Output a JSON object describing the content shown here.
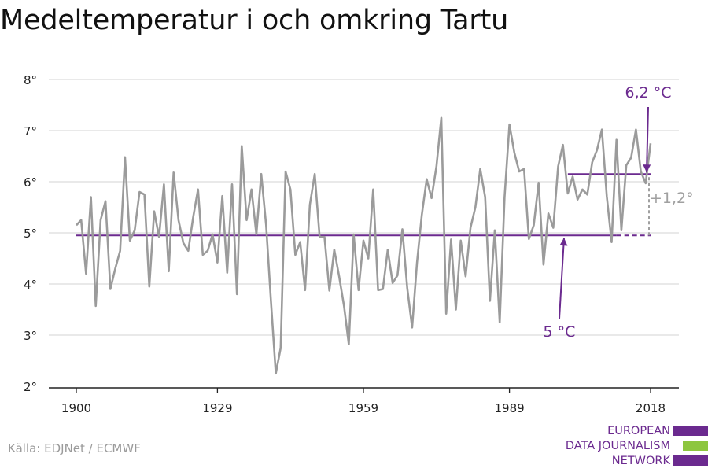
{
  "title": "Medeltemperatur i och omkring Tartu",
  "source": "Källa: EDJNet / ECMWF",
  "logo": {
    "lines": [
      "EUROPEAN",
      "DATA JOURNALISM",
      "NETWORK"
    ],
    "text_color": "#6b2a8f",
    "bar_colors": [
      "#6b2a8f",
      "#8dc63f",
      "#6b2a8f"
    ]
  },
  "colors": {
    "series": "#9b9b9b",
    "accent": "#6b2a8f",
    "grid": "#dcdcdc",
    "axis": "#222222",
    "delta": "#a0a0a0"
  },
  "chart_data": {
    "type": "line",
    "title": "Medeltemperatur i och omkring Tartu",
    "xlabel": "",
    "ylabel": "",
    "xlim": [
      1900,
      2018
    ],
    "ylim": [
      2,
      8
    ],
    "x_ticks": [
      1900,
      1929,
      1959,
      1989,
      2018
    ],
    "y_ticks": [
      2,
      3,
      4,
      5,
      6,
      7,
      8
    ],
    "y_tick_labels": [
      "2°",
      "3°",
      "4°",
      "5°",
      "6°",
      "7°",
      "8°"
    ],
    "grid": true,
    "series": [
      {
        "values": [
          [
            1900,
            5.15
          ],
          [
            1901,
            5.25
          ],
          [
            1902,
            4.2
          ],
          [
            1903,
            5.7
          ],
          [
            1904,
            3.57
          ],
          [
            1905,
            5.25
          ],
          [
            1906,
            5.62
          ],
          [
            1907,
            3.9
          ],
          [
            1908,
            4.3
          ],
          [
            1909,
            4.65
          ],
          [
            1910,
            6.48
          ],
          [
            1911,
            4.85
          ],
          [
            1912,
            5.05
          ],
          [
            1913,
            5.8
          ],
          [
            1914,
            5.75
          ],
          [
            1915,
            3.95
          ],
          [
            1916,
            5.42
          ],
          [
            1917,
            4.92
          ],
          [
            1918,
            5.95
          ],
          [
            1919,
            4.25
          ],
          [
            1920,
            6.18
          ],
          [
            1921,
            5.25
          ],
          [
            1922,
            4.8
          ],
          [
            1923,
            4.65
          ],
          [
            1924,
            5.3
          ],
          [
            1925,
            5.85
          ],
          [
            1926,
            4.57
          ],
          [
            1927,
            4.65
          ],
          [
            1928,
            4.97
          ],
          [
            1929,
            4.42
          ],
          [
            1930,
            5.72
          ],
          [
            1931,
            4.22
          ],
          [
            1932,
            5.95
          ],
          [
            1933,
            3.8
          ],
          [
            1934,
            6.7
          ],
          [
            1935,
            5.25
          ],
          [
            1936,
            5.85
          ],
          [
            1937,
            4.97
          ],
          [
            1938,
            6.15
          ],
          [
            1939,
            5.15
          ],
          [
            1940,
            3.65
          ],
          [
            1941,
            2.25
          ],
          [
            1942,
            2.75
          ],
          [
            1943,
            6.2
          ],
          [
            1944,
            5.85
          ],
          [
            1945,
            4.57
          ],
          [
            1946,
            4.82
          ],
          [
            1947,
            3.88
          ],
          [
            1948,
            5.55
          ],
          [
            1949,
            6.15
          ],
          [
            1950,
            4.92
          ],
          [
            1951,
            4.92
          ],
          [
            1952,
            3.87
          ],
          [
            1953,
            4.67
          ],
          [
            1954,
            4.15
          ],
          [
            1955,
            3.57
          ],
          [
            1956,
            2.82
          ],
          [
            1957,
            4.97
          ],
          [
            1958,
            3.88
          ],
          [
            1959,
            4.85
          ],
          [
            1960,
            4.5
          ],
          [
            1961,
            5.85
          ],
          [
            1962,
            3.88
          ],
          [
            1963,
            3.9
          ],
          [
            1964,
            4.67
          ],
          [
            1965,
            4.02
          ],
          [
            1966,
            4.17
          ],
          [
            1967,
            5.07
          ],
          [
            1968,
            3.92
          ],
          [
            1969,
            3.15
          ],
          [
            1970,
            4.42
          ],
          [
            1971,
            5.35
          ],
          [
            1972,
            6.05
          ],
          [
            1973,
            5.68
          ],
          [
            1974,
            6.3
          ],
          [
            1975,
            7.25
          ],
          [
            1976,
            3.42
          ],
          [
            1977,
            4.87
          ],
          [
            1978,
            3.5
          ],
          [
            1979,
            4.85
          ],
          [
            1980,
            4.15
          ],
          [
            1981,
            5.1
          ],
          [
            1982,
            5.5
          ],
          [
            1983,
            6.25
          ],
          [
            1984,
            5.7
          ],
          [
            1985,
            3.67
          ],
          [
            1986,
            5.05
          ],
          [
            1987,
            3.25
          ],
          [
            1988,
            5.7
          ],
          [
            1989,
            7.12
          ],
          [
            1990,
            6.57
          ],
          [
            1991,
            6.2
          ],
          [
            1992,
            6.25
          ],
          [
            1993,
            4.88
          ],
          [
            1994,
            5.15
          ],
          [
            1995,
            5.98
          ],
          [
            1996,
            4.38
          ],
          [
            1997,
            5.38
          ],
          [
            1998,
            5.1
          ],
          [
            1999,
            6.3
          ],
          [
            2000,
            6.72
          ],
          [
            2001,
            5.77
          ],
          [
            2002,
            6.1
          ],
          [
            2003,
            5.65
          ],
          [
            2004,
            5.85
          ],
          [
            2005,
            5.75
          ],
          [
            2006,
            6.38
          ],
          [
            2007,
            6.62
          ],
          [
            2008,
            7.02
          ],
          [
            2009,
            5.72
          ],
          [
            2010,
            4.82
          ],
          [
            2011,
            6.82
          ],
          [
            2012,
            5.05
          ],
          [
            2013,
            6.32
          ],
          [
            2014,
            6.47
          ],
          [
            2015,
            7.02
          ],
          [
            2016,
            6.2
          ],
          [
            2017,
            5.97
          ],
          [
            2018,
            6.75
          ]
        ]
      }
    ],
    "reference_lines": [
      {
        "x_start": 1900,
        "x_end": 2011,
        "x_dashed_end": 2018,
        "y": 4.95
      },
      {
        "x_start": 2001,
        "x_end": 2018,
        "y": 6.15
      }
    ],
    "annotations": {
      "baseline_label": "5 °C",
      "recent_label": "6,2 °C",
      "delta_label": "+1,2°"
    }
  }
}
